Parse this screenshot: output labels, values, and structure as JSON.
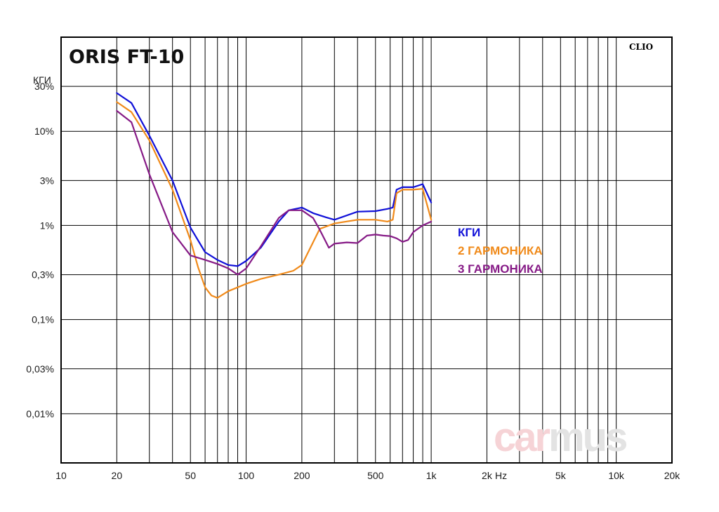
{
  "chart_data": {
    "type": "line",
    "title": "ORIS FT-10",
    "brand": "CLIO",
    "ylabel": "КГИ",
    "xunit_label": "Hz",
    "x_scale": "log",
    "y_scale": "log",
    "xlim": [
      10,
      20000
    ],
    "ylim": [
      0.003,
      100
    ],
    "x_ticks": [
      {
        "value": 10,
        "label": "10"
      },
      {
        "value": 20,
        "label": "20"
      },
      {
        "value": 50,
        "label": "50"
      },
      {
        "value": 100,
        "label": "100"
      },
      {
        "value": 200,
        "label": "200"
      },
      {
        "value": 500,
        "label": "500"
      },
      {
        "value": 1000,
        "label": "1k"
      },
      {
        "value": 2000,
        "label": "2k"
      },
      {
        "value": 5000,
        "label": "5k"
      },
      {
        "value": 10000,
        "label": "10k"
      },
      {
        "value": 20000,
        "label": "20k"
      }
    ],
    "y_ticks": [
      {
        "value": 30,
        "label": "30%"
      },
      {
        "value": 10,
        "label": "10%"
      },
      {
        "value": 3,
        "label": "3%"
      },
      {
        "value": 1,
        "label": "1%"
      },
      {
        "value": 0.3,
        "label": "0,3%"
      },
      {
        "value": 0.1,
        "label": "0,1%"
      },
      {
        "value": 0.03,
        "label": "0,03%"
      },
      {
        "value": 0.01,
        "label": "0,01%"
      }
    ],
    "grid": true,
    "legend_position": "right",
    "series": [
      {
        "name": "КГИ",
        "color": "#1010d8",
        "x": [
          20,
          24,
          30,
          40,
          50,
          60,
          70,
          80,
          90,
          100,
          120,
          150,
          170,
          200,
          230,
          270,
          300,
          400,
          500,
          580,
          620,
          650,
          700,
          800,
          900,
          1000
        ],
        "y": [
          25.5,
          20.0,
          9.0,
          3.0,
          0.95,
          0.52,
          0.43,
          0.38,
          0.37,
          0.42,
          0.58,
          1.1,
          1.45,
          1.55,
          1.35,
          1.22,
          1.15,
          1.4,
          1.42,
          1.5,
          1.55,
          2.4,
          2.55,
          2.55,
          2.75,
          1.75
        ]
      },
      {
        "name": "2 ГАРМОНИКА",
        "color": "#f08a1a",
        "x": [
          20,
          24,
          30,
          40,
          50,
          55,
          60,
          65,
          70,
          80,
          90,
          100,
          120,
          150,
          180,
          200,
          250,
          300,
          400,
          500,
          580,
          620,
          650,
          700,
          800,
          900,
          1000
        ],
        "y": [
          20.5,
          16.0,
          8.0,
          2.4,
          0.7,
          0.36,
          0.22,
          0.18,
          0.17,
          0.2,
          0.22,
          0.24,
          0.27,
          0.3,
          0.33,
          0.38,
          0.92,
          1.05,
          1.15,
          1.15,
          1.1,
          1.15,
          2.2,
          2.4,
          2.4,
          2.45,
          1.15
        ]
      },
      {
        "name": "3 ГАРМОНИКА",
        "color": "#861a86",
        "x": [
          20,
          24,
          30,
          40,
          50,
          60,
          70,
          80,
          90,
          100,
          120,
          150,
          170,
          200,
          230,
          250,
          280,
          300,
          350,
          400,
          450,
          500,
          550,
          600,
          650,
          700,
          750,
          800,
          900,
          1000
        ],
        "y": [
          16.5,
          12.5,
          3.5,
          0.85,
          0.48,
          0.43,
          0.39,
          0.35,
          0.3,
          0.35,
          0.6,
          1.2,
          1.45,
          1.45,
          1.2,
          0.9,
          0.58,
          0.64,
          0.66,
          0.65,
          0.78,
          0.8,
          0.78,
          0.77,
          0.73,
          0.67,
          0.7,
          0.85,
          1.0,
          1.1
        ]
      }
    ],
    "watermark": "carmus"
  }
}
